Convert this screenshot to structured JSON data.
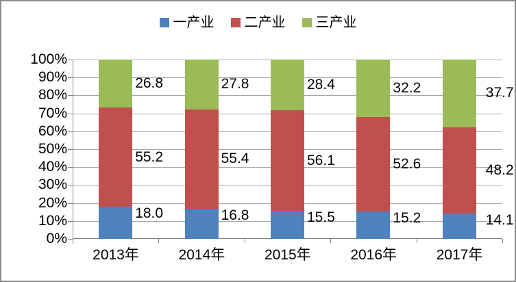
{
  "chart_data": {
    "type": "bar",
    "variant": "stacked-100-percent",
    "title": "",
    "categories": [
      "2013年",
      "2014年",
      "2015年",
      "2016年",
      "2017年"
    ],
    "series": [
      {
        "name": "一产业",
        "color": "#4F81BD",
        "values": [
          18.0,
          16.8,
          15.5,
          15.2,
          14.1
        ],
        "labels": [
          "18.0",
          "16.8",
          "15.5",
          "15.2",
          "14.1"
        ]
      },
      {
        "name": "二产业",
        "color": "#C0504D",
        "values": [
          55.2,
          55.4,
          56.1,
          52.6,
          48.2
        ],
        "labels": [
          "55.2",
          "55.4",
          "56.1",
          "52.6",
          "48.2"
        ]
      },
      {
        "name": "三产业",
        "color": "#9BBB59",
        "values": [
          26.8,
          27.8,
          28.4,
          32.2,
          37.7
        ],
        "labels": [
          "26.8",
          "27.8",
          "28.4",
          "32.2",
          "37.7"
        ]
      }
    ],
    "y_axis": {
      "ticks_top_down": [
        "100%",
        "90%",
        "80%",
        "70%",
        "60%",
        "50%",
        "40%",
        "30%",
        "20%",
        "10%",
        "0%"
      ],
      "min": 0,
      "max": 100,
      "unit": "%"
    },
    "legend": {
      "position": "top",
      "items": [
        "一产业",
        "二产业",
        "三产业"
      ]
    },
    "grid": true,
    "colors": {
      "gridline": "#A6A6A6",
      "axis": "#808080",
      "frame_border": "#8A8A8A",
      "text": "#000000"
    }
  }
}
